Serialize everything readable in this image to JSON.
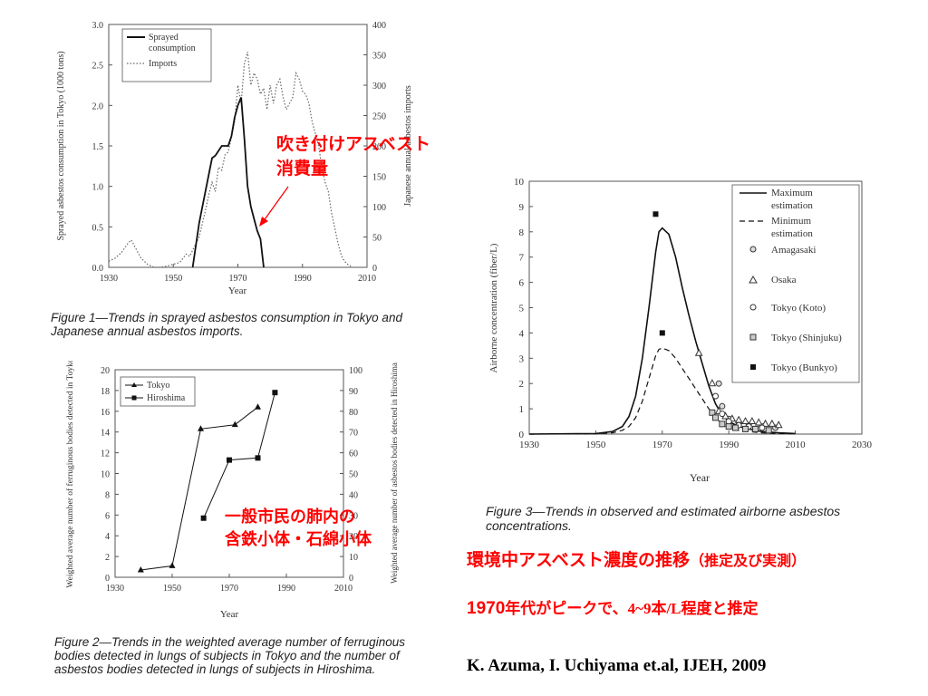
{
  "colors": {
    "annotation": "#ff0000",
    "line": "#111111",
    "axis": "#555555"
  },
  "figure1": {
    "caption": "Figure 1—Trends in sprayed asbestos consumption in Tokyo and Japanese annual asbestos imports.",
    "annotation_line1": "吹き付けアスベスト",
    "annotation_line2": "消費量"
  },
  "figure2": {
    "caption": "Figure 2—Trends in the weighted average number of ferruginous bodies detected in lungs of subjects in Tokyo and the number of asbestos bodies detected in lungs of subjects in Hiroshima.",
    "annotation_line1": "一般市民の肺内の",
    "annotation_line2": "含鉄小体・石綿小体"
  },
  "figure3": {
    "caption": "Figure 3—Trends in observed and estimated airborne asbestos concentrations."
  },
  "notes": {
    "headline": "環境中アスベスト濃度の推移",
    "headline_paren": "（推定及び実測）",
    "peak_prefix": "1970",
    "peak_mid": "年代がピークで、",
    "peak_range": "4~9本/L",
    "peak_suffix": "程度と推定",
    "citation": "K. Azuma, I. Uchiyama et.al, IJEH, 2009"
  },
  "chart_data": [
    {
      "type": "line",
      "id": "fig1",
      "xlabel": "Year",
      "ylabel": "Sprayed asbestos consumption in Tokyo (1000 tons)",
      "y2label": "Japanese annual asbestos imports",
      "xlim": [
        1930,
        2010
      ],
      "ylim": [
        0,
        3.0
      ],
      "y2lim": [
        0,
        400
      ],
      "x_ticks": [
        1930,
        1950,
        1970,
        1990,
        2010
      ],
      "y_ticks": [
        "0.0",
        "0.5",
        "1.0",
        "1.5",
        "2.0",
        "2.5",
        "3.0"
      ],
      "y2_ticks": [
        0,
        50,
        100,
        150,
        200,
        250,
        300,
        350,
        400
      ],
      "legend": [
        "Sprayed consumption",
        "Imports"
      ],
      "series": [
        {
          "name": "Sprayed consumption",
          "axis": "left",
          "style": "solid",
          "x": [
            1956,
            1958,
            1960,
            1962,
            1963,
            1965,
            1967,
            1968,
            1969,
            1970,
            1971,
            1972,
            1973,
            1974,
            1975,
            1976,
            1977,
            1978
          ],
          "y": [
            0,
            0.55,
            0.95,
            1.35,
            1.38,
            1.5,
            1.5,
            1.62,
            1.85,
            2.0,
            2.1,
            1.6,
            1.0,
            0.75,
            0.6,
            0.45,
            0.35,
            0
          ]
        },
        {
          "name": "Imports",
          "axis": "right",
          "style": "dotted",
          "x": [
            1930,
            1932,
            1934,
            1936,
            1937,
            1938,
            1940,
            1942,
            1944,
            1946,
            1948,
            1950,
            1952,
            1954,
            1955,
            1956,
            1958,
            1960,
            1961,
            1962,
            1963,
            1964,
            1965,
            1966,
            1967,
            1968,
            1969,
            1970,
            1971,
            1972,
            1973,
            1974,
            1975,
            1976,
            1977,
            1978,
            1979,
            1980,
            1981,
            1982,
            1983,
            1984,
            1985,
            1986,
            1987,
            1988,
            1989,
            1990,
            1991,
            1992,
            1993,
            1994,
            1995,
            1996,
            1997,
            1998,
            1999,
            2000,
            2001,
            2002,
            2003,
            2004,
            2005
          ],
          "y": [
            10,
            15,
            25,
            40,
            45,
            35,
            15,
            5,
            0,
            0,
            2,
            5,
            8,
            22,
            18,
            28,
            50,
            95,
            120,
            140,
            125,
            165,
            160,
            185,
            190,
            215,
            240,
            300,
            270,
            335,
            355,
            300,
            320,
            310,
            285,
            295,
            260,
            300,
            270,
            300,
            310,
            280,
            260,
            270,
            280,
            320,
            310,
            290,
            285,
            270,
            240,
            220,
            200,
            165,
            140,
            125,
            90,
            65,
            40,
            20,
            10,
            5,
            2
          ]
        }
      ]
    },
    {
      "type": "line",
      "id": "fig2",
      "xlabel": "Year",
      "ylabel": "Weighted average number of ferruginous bodies detected in Toyko",
      "y2label": "Weighted average number of asbestos bodies detected in Hiroshima",
      "xlim": [
        1930,
        2010
      ],
      "ylim": [
        0,
        20
      ],
      "y2lim": [
        0,
        100
      ],
      "x_ticks": [
        1930,
        1950,
        1970,
        1990,
        2010
      ],
      "y_ticks": [
        0,
        2,
        4,
        6,
        8,
        10,
        12,
        14,
        16,
        18,
        20
      ],
      "y2_ticks": [
        0,
        10,
        20,
        30,
        40,
        50,
        60,
        70,
        80,
        90,
        100
      ],
      "legend": [
        "Tokyo",
        "Hiroshima"
      ],
      "series": [
        {
          "name": "Tokyo",
          "axis": "left",
          "marker": "triangle",
          "x": [
            1939,
            1950,
            1960,
            1972,
            1980
          ],
          "y": [
            0.7,
            1.1,
            14.3,
            14.7,
            16.4
          ]
        },
        {
          "name": "Hiroshima",
          "axis": "right",
          "marker": "square",
          "x": [
            1961,
            1970,
            1980,
            1986
          ],
          "y": [
            28.5,
            56.5,
            57.5,
            89
          ]
        }
      ]
    },
    {
      "type": "line",
      "id": "fig3",
      "xlabel": "Year",
      "ylabel": "Airborne concentration (fiber/L)",
      "xlim": [
        1930,
        2030
      ],
      "ylim": [
        0,
        10
      ],
      "x_ticks": [
        1930,
        1950,
        1970,
        1990,
        2010,
        2030
      ],
      "y_ticks": [
        0,
        1,
        2,
        3,
        4,
        5,
        6,
        7,
        8,
        9,
        10
      ],
      "legend": [
        "Maximum estimation",
        "Minimum estimation",
        "Amagasaki",
        "Osaka",
        "Tokyo (Koto)",
        "Tokyo (Shinjuku)",
        "Tokyo (Bunkyo)"
      ],
      "series": [
        {
          "name": "Maximum estimation",
          "style": "solid",
          "x": [
            1930,
            1950,
            1955,
            1958,
            1960,
            1962,
            1964,
            1966,
            1968,
            1969,
            1970,
            1972,
            1974,
            1976,
            1978,
            1980,
            1982,
            1984,
            1986,
            1988,
            1990,
            1993,
            1996,
            2000,
            2005,
            2010
          ],
          "y": [
            0,
            0.02,
            0.1,
            0.3,
            0.7,
            1.5,
            3.0,
            5.0,
            7.2,
            8.0,
            8.15,
            7.9,
            7.0,
            5.8,
            4.7,
            3.7,
            2.8,
            1.9,
            1.2,
            0.75,
            0.5,
            0.3,
            0.2,
            0.1,
            0.05,
            0.02
          ]
        },
        {
          "name": "Minimum estimation",
          "style": "dashed",
          "x": [
            1930,
            1950,
            1955,
            1958,
            1960,
            1962,
            1964,
            1966,
            1968,
            1969,
            1970,
            1972,
            1974,
            1976,
            1978,
            1980,
            1982,
            1984,
            1986,
            1988,
            1990,
            1993,
            1996,
            2000,
            2005,
            2010
          ],
          "y": [
            0,
            0.01,
            0.05,
            0.15,
            0.3,
            0.65,
            1.3,
            2.2,
            3.1,
            3.35,
            3.4,
            3.3,
            3.0,
            2.6,
            2.2,
            1.8,
            1.4,
            1.0,
            0.65,
            0.4,
            0.25,
            0.15,
            0.1,
            0.05,
            0.02,
            0.01
          ]
        },
        {
          "name": "Amagasaki",
          "marker": "circle-dot",
          "x": [
            1987,
            1988,
            1990,
            1993,
            1996,
            2000,
            2004
          ],
          "y": [
            2.0,
            1.1,
            0.6,
            0.45,
            0.35,
            0.3,
            0.25
          ]
        },
        {
          "name": "Osaka",
          "marker": "triangle",
          "x": [
            1981,
            1985,
            1987,
            1989,
            1991,
            1993,
            1995,
            1997,
            1999,
            2001,
            2003,
            2005
          ],
          "y": [
            3.2,
            2.0,
            0.9,
            0.7,
            0.6,
            0.55,
            0.5,
            0.5,
            0.45,
            0.4,
            0.4,
            0.35
          ]
        },
        {
          "name": "Tokyo (Koto)",
          "marker": "circle",
          "x": [
            1986,
            1988,
            1990,
            1993,
            1996,
            2000
          ],
          "y": [
            1.5,
            0.8,
            0.5,
            0.35,
            0.3,
            0.25
          ]
        },
        {
          "name": "Tokyo (Shinjuku)",
          "marker": "square-open",
          "x": [
            1985,
            1986,
            1988,
            1990,
            1992,
            1995,
            1998,
            2002
          ],
          "y": [
            0.85,
            0.65,
            0.4,
            0.3,
            0.25,
            0.2,
            0.2,
            0.15
          ]
        },
        {
          "name": "Tokyo (Bunkyo)",
          "marker": "square",
          "x": [
            1968,
            1970
          ],
          "y": [
            8.7,
            4.0
          ]
        }
      ]
    }
  ]
}
